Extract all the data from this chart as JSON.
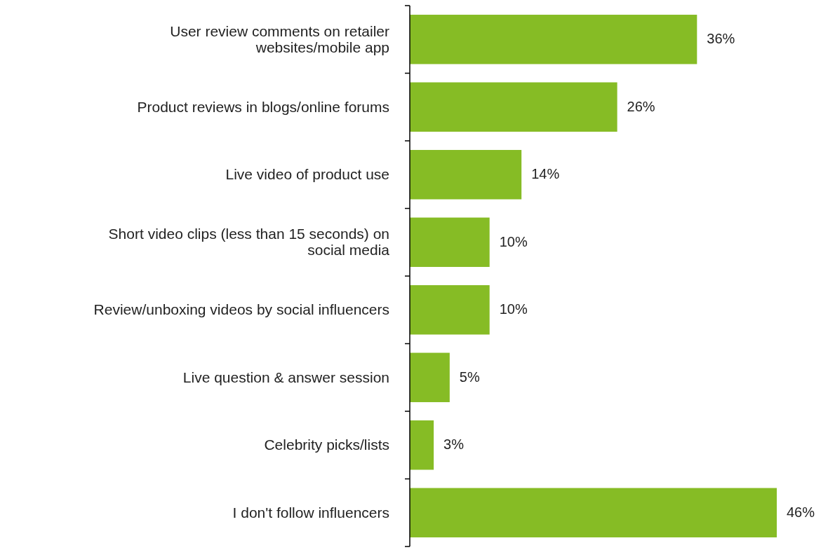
{
  "chart_data": {
    "type": "bar",
    "orientation": "horizontal",
    "categories": [
      "User review comments on retailer websites/mobile app",
      "Product reviews in blogs/online forums",
      "Live video of product use",
      "Short video clips (less than 15 seconds) on social media",
      "Review/unboxing videos by social influencers",
      "Live question & answer session",
      "Celebrity picks/lists",
      "I don't follow influencers"
    ],
    "values": [
      36,
      26,
      14,
      10,
      10,
      5,
      3,
      46
    ],
    "value_labels": [
      "36%",
      "26%",
      "14%",
      "10%",
      "10%",
      "5%",
      "3%",
      "46%"
    ],
    "color": "#86bc25"
  }
}
